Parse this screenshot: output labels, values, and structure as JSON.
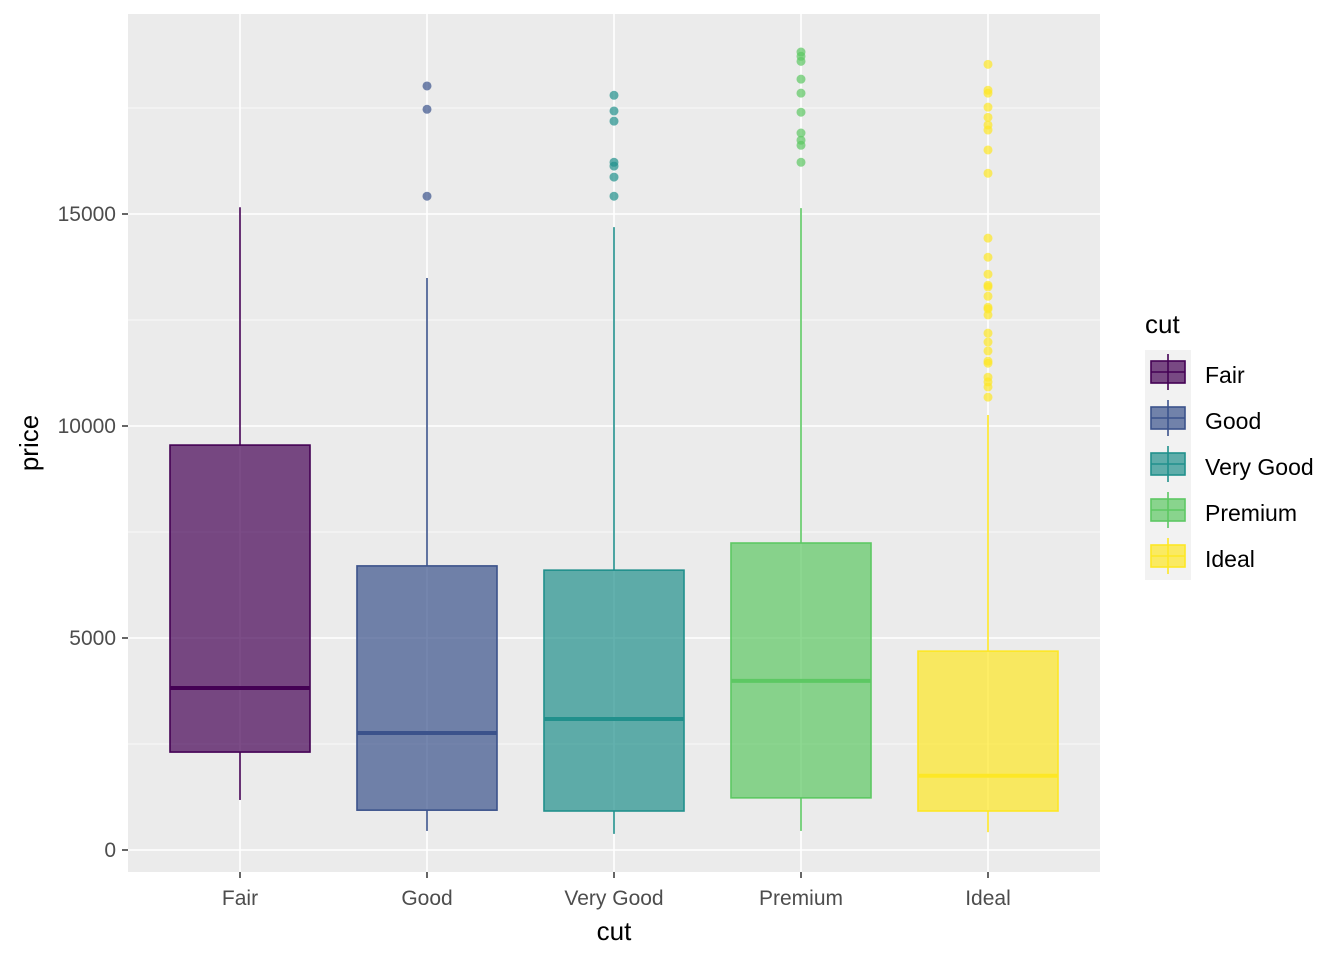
{
  "chart_data": {
    "type": "boxplot",
    "title": "",
    "xlabel": "cut",
    "ylabel": "price",
    "ylim": [
      -1000,
      19500
    ],
    "yticks": [
      0,
      5000,
      10000,
      15000
    ],
    "grid": true,
    "legend": {
      "title": "cut",
      "placement": "right"
    },
    "categories": [
      "Fair",
      "Good",
      "Very Good",
      "Premium",
      "Ideal"
    ],
    "series": [
      {
        "name": "Fair",
        "color": "#440154",
        "whisker_low": 1180,
        "q1": 2310,
        "median": 3820,
        "q3": 9550,
        "whisker_high": 15160,
        "outliers": []
      },
      {
        "name": "Good",
        "color": "#3B528B",
        "whisker_low": 450,
        "q1": 940,
        "median": 2760,
        "q3": 6700,
        "whisker_high": 13490,
        "outliers": [
          15420,
          17470,
          18020
        ]
      },
      {
        "name": "Very Good",
        "color": "#21908C",
        "whisker_low": 380,
        "q1": 920,
        "median": 3090,
        "q3": 6600,
        "whisker_high": 14690,
        "outliers": [
          15420,
          15870,
          16130,
          16220,
          17190,
          17430,
          17800
        ]
      },
      {
        "name": "Premium",
        "color": "#5DC863",
        "whisker_low": 450,
        "q1": 1230,
        "median": 3990,
        "q3": 7240,
        "whisker_high": 15140,
        "outliers": [
          16220,
          16620,
          16740,
          16910,
          17400,
          17850,
          18180,
          18600,
          18720,
          18820
        ]
      },
      {
        "name": "Ideal",
        "color": "#FDE725",
        "whisker_low": 420,
        "q1": 920,
        "median": 1750,
        "q3": 4690,
        "whisker_high": 10260,
        "outliers": [
          10680,
          10920,
          11040,
          11150,
          11480,
          11530,
          11770,
          11980,
          12190,
          12620,
          12760,
          12800,
          13060,
          13280,
          13320,
          13580,
          13980,
          14430,
          15960,
          16510,
          16980,
          17100,
          17280,
          17520,
          17850,
          17920,
          18530
        ]
      }
    ]
  }
}
